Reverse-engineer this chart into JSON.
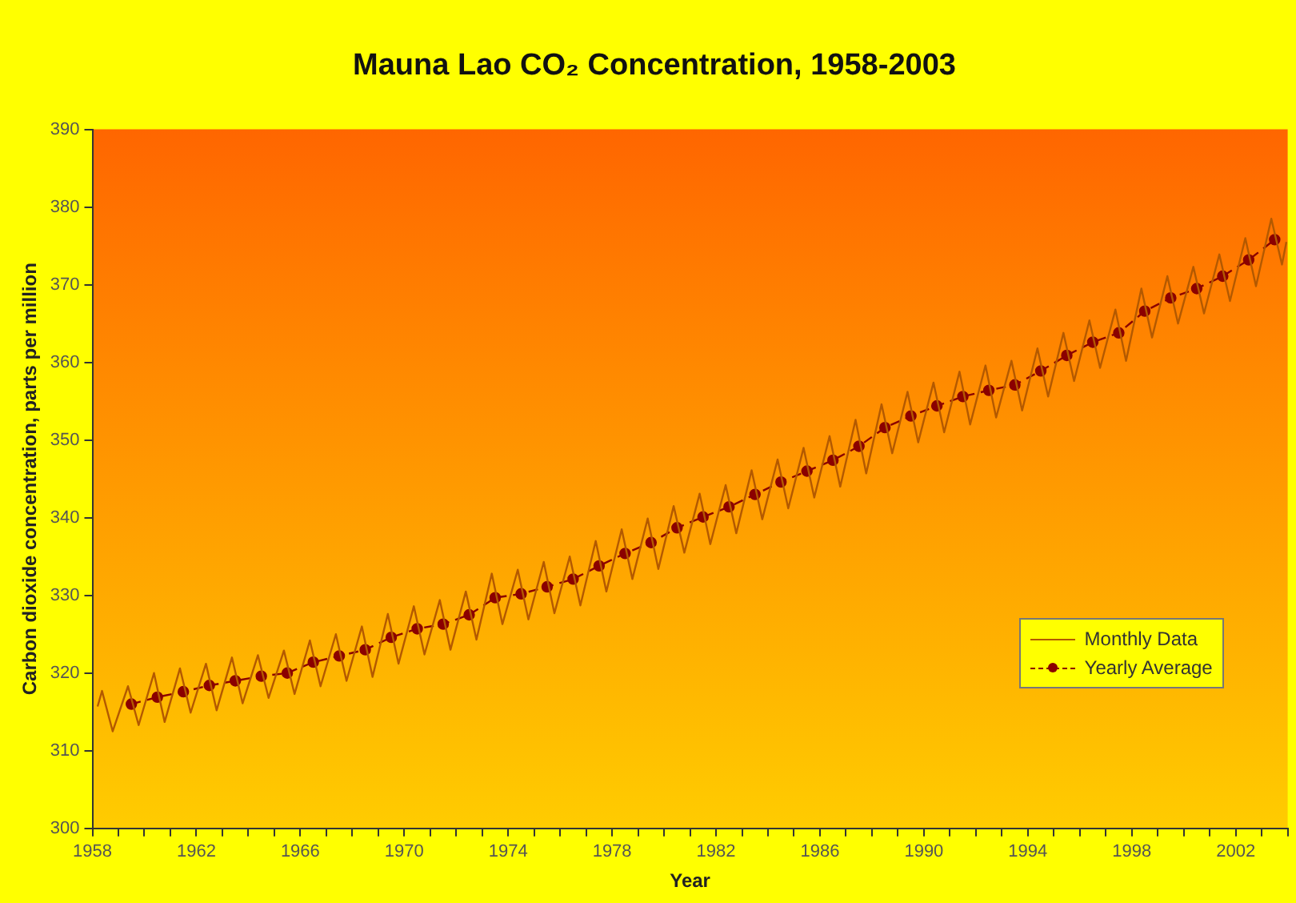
{
  "chart_data": {
    "type": "line",
    "title": "Mauna Lao CO₂ Concentration, 1958-2003",
    "xlabel": "Year",
    "ylabel": "Carbon dioxide concentration, parts per million",
    "xlim": [
      1958,
      2004
    ],
    "ylim": [
      300,
      390
    ],
    "xticks": [
      1958,
      {
        "value": 1959,
        "label": null
      },
      {
        "value": 1960,
        "label": null
      },
      {
        "value": 1961,
        "label": null
      },
      1962,
      {
        "value": 1963,
        "label": null
      },
      {
        "value": 1964,
        "label": null
      },
      {
        "value": 1965,
        "label": null
      },
      1966,
      {
        "value": 1967,
        "label": null
      },
      {
        "value": 1968,
        "label": null
      },
      {
        "value": 1969,
        "label": null
      },
      1970,
      {
        "value": 1971,
        "label": null
      },
      {
        "value": 1972,
        "label": null
      },
      {
        "value": 1973,
        "label": null
      },
      1974,
      {
        "value": 1975,
        "label": null
      },
      {
        "value": 1976,
        "label": null
      },
      {
        "value": 1977,
        "label": null
      },
      1978,
      {
        "value": 1979,
        "label": null
      },
      {
        "value": 1980,
        "label": null
      },
      {
        "value": 1981,
        "label": null
      },
      1982,
      {
        "value": 1983,
        "label": null
      },
      {
        "value": 1984,
        "label": null
      },
      {
        "value": 1985,
        "label": null
      },
      1986,
      {
        "value": 1987,
        "label": null
      },
      {
        "value": 1988,
        "label": null
      },
      {
        "value": 1989,
        "label": null
      },
      1990,
      {
        "value": 1991,
        "label": null
      },
      {
        "value": 1992,
        "label": null
      },
      {
        "value": 1993,
        "label": null
      },
      1994,
      {
        "value": 1995,
        "label": null
      },
      {
        "value": 1996,
        "label": null
      },
      {
        "value": 1997,
        "label": null
      },
      1998,
      {
        "value": 1999,
        "label": null
      },
      {
        "value": 2000,
        "label": null
      },
      {
        "value": 2001,
        "label": null
      },
      2002,
      {
        "value": 2003,
        "label": null
      },
      {
        "value": 2004,
        "label": null
      }
    ],
    "yticks": [
      300,
      310,
      320,
      330,
      340,
      350,
      360,
      370,
      380,
      390
    ],
    "grid": false,
    "legend": "right",
    "series": [
      {
        "name": "Monthly Data",
        "color": "#b35900",
        "marker": "none",
        "line_style": "solid",
        "x": [
          1958.2,
          1958.37,
          1958.78,
          1959.37,
          1959.78,
          1960.37,
          1960.78,
          1961.37,
          1961.78,
          1962.37,
          1962.78,
          1963.37,
          1963.78,
          1964.37,
          1964.78,
          1965.37,
          1965.78,
          1966.37,
          1966.78,
          1967.37,
          1967.78,
          1968.37,
          1968.78,
          1969.37,
          1969.78,
          1970.37,
          1970.78,
          1971.37,
          1971.78,
          1972.37,
          1972.78,
          1973.37,
          1973.78,
          1974.37,
          1974.78,
          1975.37,
          1975.78,
          1976.37,
          1976.78,
          1977.37,
          1977.78,
          1978.37,
          1978.78,
          1979.37,
          1979.78,
          1980.37,
          1980.78,
          1981.37,
          1981.78,
          1982.37,
          1982.78,
          1983.37,
          1983.78,
          1984.37,
          1984.78,
          1985.37,
          1985.78,
          1986.37,
          1986.78,
          1987.37,
          1987.78,
          1988.37,
          1988.78,
          1989.37,
          1989.78,
          1990.37,
          1990.78,
          1991.37,
          1991.78,
          1992.37,
          1992.78,
          1993.37,
          1993.78,
          1994.37,
          1994.78,
          1995.37,
          1995.78,
          1996.37,
          1996.78,
          1997.37,
          1997.78,
          1998.37,
          1998.78,
          1999.37,
          1999.78,
          2000.37,
          2000.78,
          2001.37,
          2001.78,
          2002.37,
          2002.78,
          2003.37,
          2003.78,
          2003.95
        ],
        "values": [
          315.7,
          317.7,
          312.5,
          318.3,
          313.3,
          320.0,
          313.7,
          320.6,
          314.9,
          321.2,
          315.2,
          322.0,
          316.1,
          322.3,
          316.8,
          322.9,
          317.3,
          324.2,
          318.3,
          325.0,
          319.0,
          326.0,
          319.5,
          327.6,
          321.2,
          328.6,
          322.4,
          329.4,
          323.0,
          330.5,
          324.3,
          332.8,
          326.3,
          333.3,
          326.9,
          334.3,
          327.7,
          335.0,
          328.7,
          337.0,
          330.5,
          338.5,
          332.1,
          339.9,
          333.4,
          341.5,
          335.5,
          343.1,
          336.6,
          344.2,
          338.0,
          346.1,
          339.8,
          347.5,
          341.2,
          349.0,
          342.6,
          350.5,
          344.0,
          352.6,
          345.7,
          354.6,
          348.3,
          356.2,
          349.7,
          357.4,
          351.0,
          358.8,
          352.0,
          359.6,
          352.9,
          360.2,
          353.8,
          361.8,
          355.6,
          363.8,
          357.6,
          365.4,
          359.3,
          366.8,
          360.2,
          369.5,
          363.2,
          371.1,
          365.0,
          372.3,
          366.3,
          373.9,
          367.9,
          376.0,
          369.8,
          378.5,
          372.6,
          375.5
        ]
      },
      {
        "name": "Yearly Average",
        "color": "#8b0000",
        "marker": "circle",
        "line_style": "dashed",
        "x": [
          1959.5,
          1960.5,
          1961.5,
          1962.5,
          1963.5,
          1964.5,
          1965.5,
          1966.5,
          1967.5,
          1968.5,
          1969.5,
          1970.5,
          1971.5,
          1972.5,
          1973.5,
          1974.5,
          1975.5,
          1976.5,
          1977.5,
          1978.5,
          1979.5,
          1980.5,
          1981.5,
          1982.5,
          1983.5,
          1984.5,
          1985.5,
          1986.5,
          1987.5,
          1988.5,
          1989.5,
          1990.5,
          1991.5,
          1992.5,
          1993.5,
          1994.5,
          1995.5,
          1996.5,
          1997.5,
          1998.5,
          1999.5,
          2000.5,
          2001.5,
          2002.5,
          2003.5
        ],
        "values": [
          316.0,
          316.9,
          317.6,
          318.4,
          319.0,
          319.6,
          320.0,
          321.4,
          322.2,
          323.0,
          324.6,
          325.7,
          326.3,
          327.5,
          329.7,
          330.2,
          331.1,
          332.1,
          333.8,
          335.4,
          336.8,
          338.7,
          340.1,
          341.4,
          343.0,
          344.6,
          346.0,
          347.4,
          349.2,
          351.6,
          353.1,
          354.4,
          355.6,
          356.4,
          357.1,
          358.9,
          360.9,
          362.6,
          363.8,
          366.6,
          368.3,
          369.5,
          371.1,
          373.2,
          375.8
        ]
      }
    ]
  }
}
